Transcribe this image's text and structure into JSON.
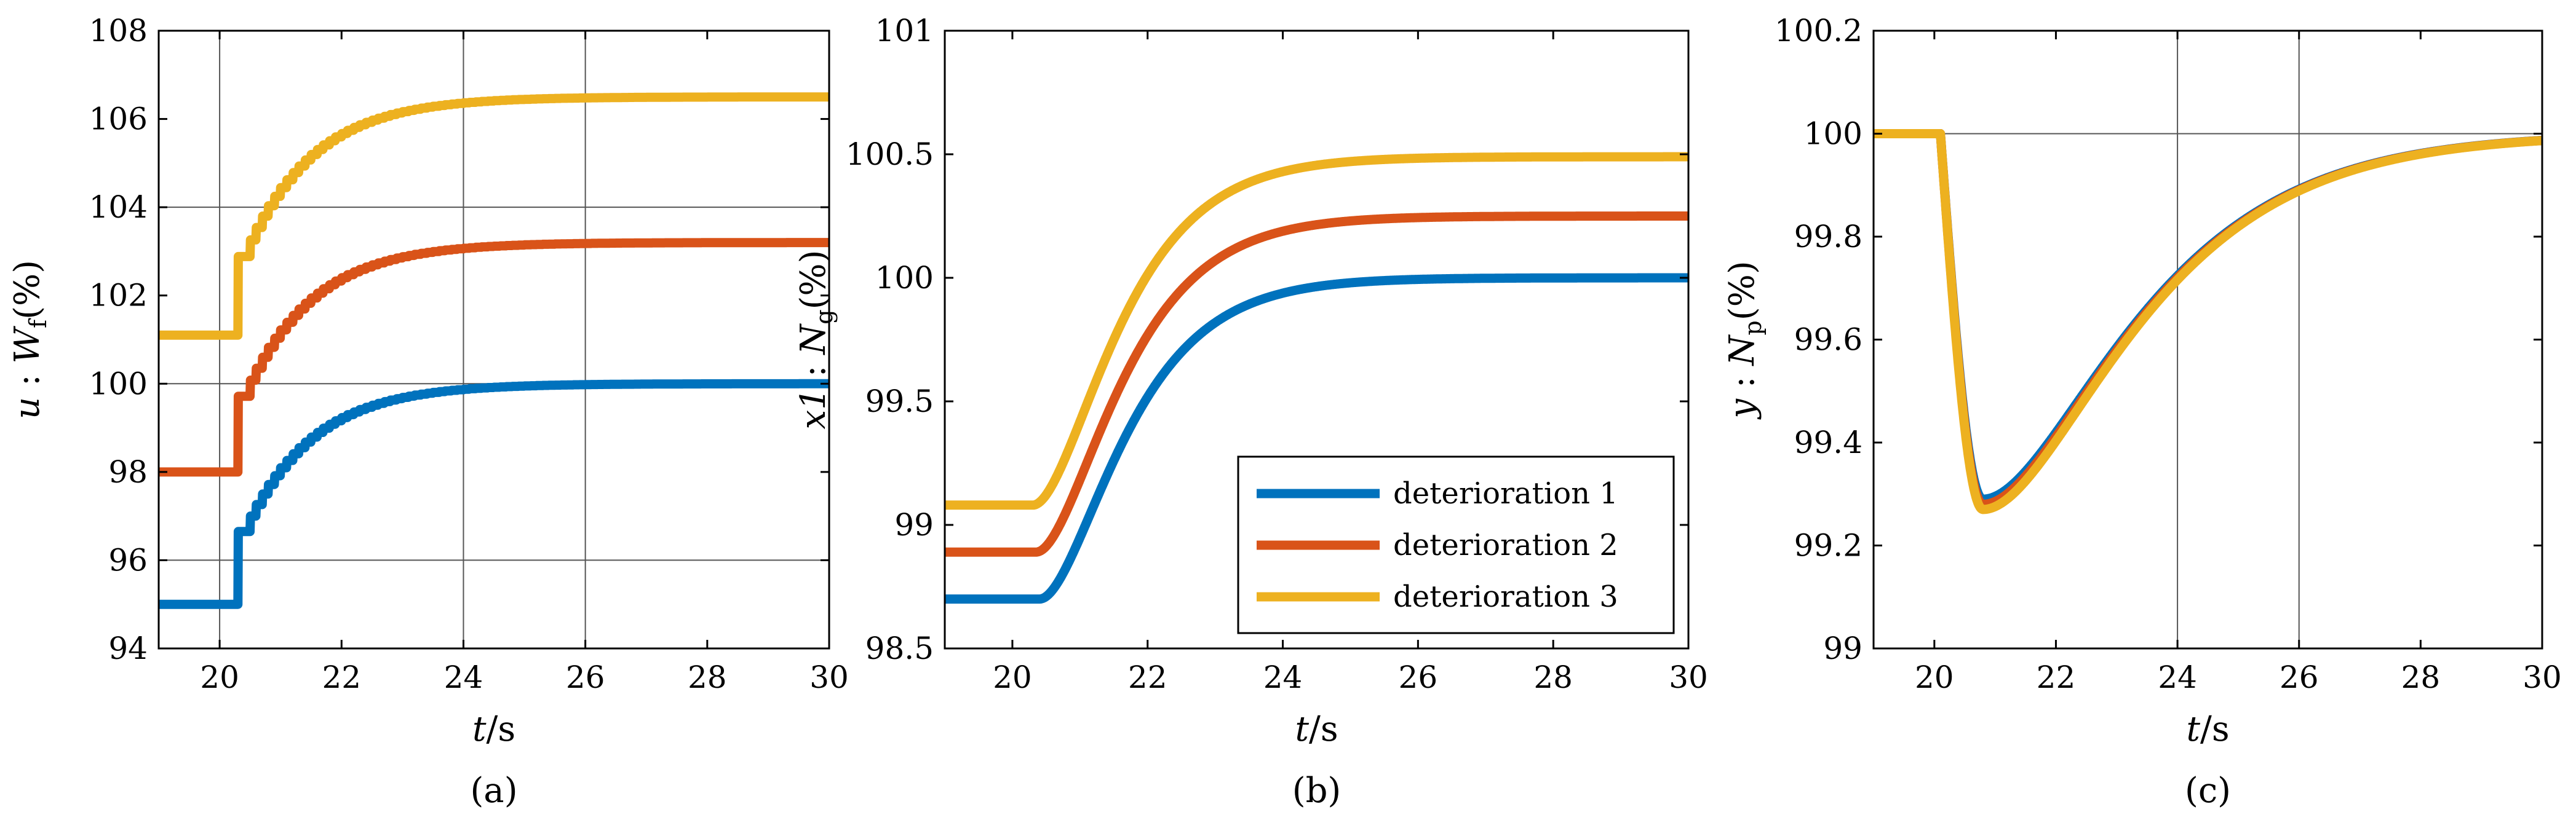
{
  "colors": {
    "deterioration_1": "#0072BD",
    "deterioration_2": "#D95319",
    "deterioration_3": "#EDB120"
  },
  "legend": {
    "entries": [
      "deterioration 1",
      "deterioration 2",
      "deterioration 3"
    ]
  },
  "chart_data": [
    {
      "type": "line",
      "caption": "(a)",
      "xlabel": {
        "var": "t",
        "unit": "/s"
      },
      "ylabel": {
        "var": "u",
        "sep": " : ",
        "sym": "W",
        "sub": "f",
        "unit": "(%)"
      },
      "xlim": [
        19,
        30
      ],
      "ylim": [
        94,
        108
      ],
      "xticks": [
        20,
        22,
        24,
        26,
        28,
        30
      ],
      "yticks": [
        94,
        96,
        98,
        100,
        102,
        104,
        106,
        108
      ],
      "xgrid": [
        20,
        24,
        26
      ],
      "ygrid": [
        96,
        100,
        104
      ],
      "series": [
        {
          "name": "deterioration 1",
          "color_key": "deterioration_1",
          "initial": 95.0,
          "final": 100.0,
          "t_step": 20.3,
          "shape": "staircase"
        },
        {
          "name": "deterioration 2",
          "color_key": "deterioration_2",
          "initial": 98.0,
          "final": 103.2,
          "t_step": 20.3,
          "shape": "staircase"
        },
        {
          "name": "deterioration 3",
          "color_key": "deterioration_3",
          "initial": 101.1,
          "final": 106.5,
          "t_step": 20.3,
          "shape": "staircase"
        }
      ]
    },
    {
      "type": "line",
      "caption": "(b)",
      "xlabel": {
        "var": "t",
        "unit": "/s"
      },
      "ylabel": {
        "var": "x1",
        "sep": " : ",
        "sym": "N",
        "sub": "g",
        "unit": "(%)"
      },
      "xlim": [
        19,
        30
      ],
      "ylim": [
        98.5,
        101
      ],
      "xticks": [
        20,
        22,
        24,
        26,
        28,
        30
      ],
      "yticks": [
        98.5,
        99,
        99.5,
        100,
        100.5,
        101
      ],
      "xgrid": [],
      "ygrid": [],
      "legend": true,
      "series": [
        {
          "name": "deterioration 1",
          "color_key": "deterioration_1",
          "initial": 98.7,
          "final": 100.0,
          "t_step": 20.4,
          "shape": "rise"
        },
        {
          "name": "deterioration 2",
          "color_key": "deterioration_2",
          "initial": 98.89,
          "final": 100.25,
          "t_step": 20.35,
          "shape": "rise"
        },
        {
          "name": "deterioration 3",
          "color_key": "deterioration_3",
          "initial": 99.08,
          "final": 100.49,
          "t_step": 20.3,
          "shape": "rise"
        }
      ]
    },
    {
      "type": "line",
      "caption": "(c)",
      "xlabel": {
        "var": "t",
        "unit": "/s"
      },
      "ylabel": {
        "var": "y",
        "sep": " : ",
        "sym": "N",
        "sub": "p",
        "unit": "(%)"
      },
      "xlim": [
        19,
        30
      ],
      "ylim": [
        99,
        100.2
      ],
      "xticks": [
        20,
        22,
        24,
        26,
        28,
        30
      ],
      "yticks": [
        99,
        99.2,
        99.4,
        99.6,
        99.8,
        100,
        100.2
      ],
      "xgrid": [
        24,
        26
      ],
      "ygrid": [
        100
      ],
      "series": [
        {
          "name": "deterioration 1",
          "color_key": "deterioration_1",
          "initial": 100.0,
          "final": 100.0,
          "t_step": 20.1,
          "t_min": 20.8,
          "min": 99.29,
          "shape": "dip"
        },
        {
          "name": "deterioration 2",
          "color_key": "deterioration_2",
          "initial": 100.0,
          "final": 100.0,
          "t_step": 20.1,
          "t_min": 20.8,
          "min": 99.28,
          "shape": "dip"
        },
        {
          "name": "deterioration 3",
          "color_key": "deterioration_3",
          "initial": 100.0,
          "final": 100.0,
          "t_step": 20.1,
          "t_min": 20.8,
          "min": 99.27,
          "shape": "dip"
        }
      ]
    }
  ]
}
